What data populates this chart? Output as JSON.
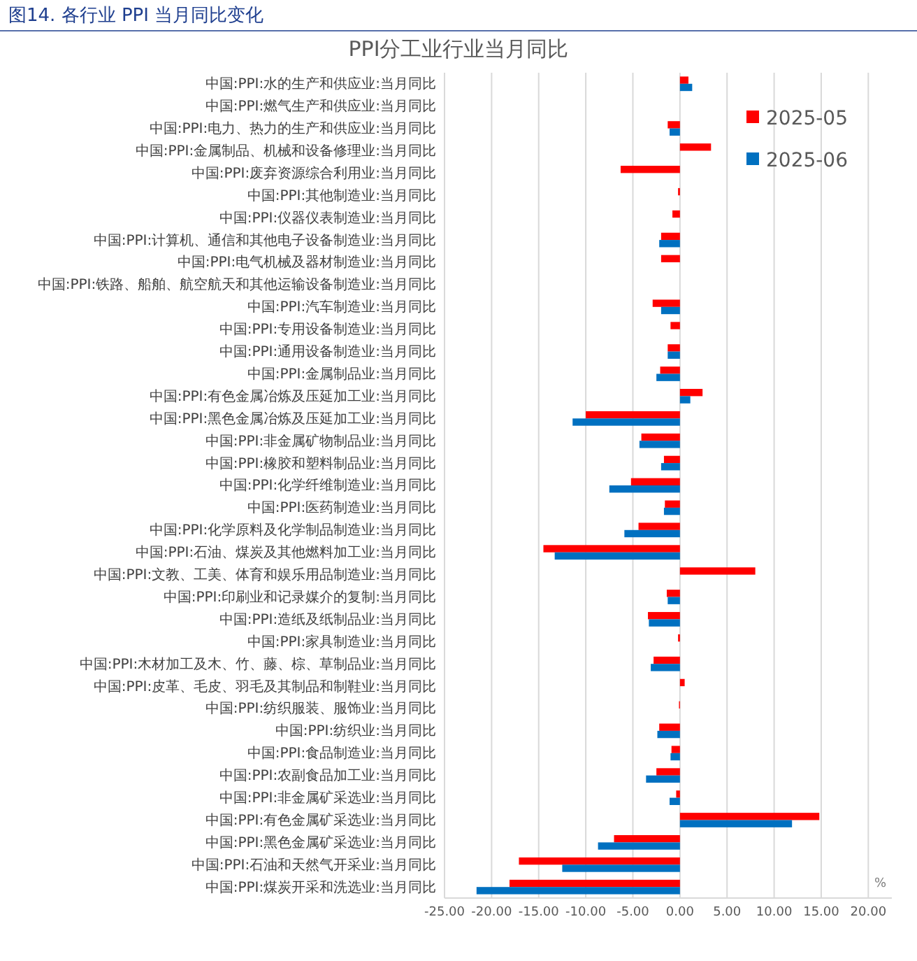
{
  "chart_data": {
    "type": "bar",
    "orientation": "horizontal",
    "title": "PPI分工业行业当月同比",
    "annotations": [
      "图14. 各行业 PPI 当月同比变化"
    ],
    "xlabel": "%",
    "categories": [
      "中国:PPI:水的生产和供应业:当月同比",
      "中国:PPI:燃气生产和供应业:当月同比",
      "中国:PPI:电力、热力的生产和供应业:当月同比",
      "中国:PPI:金属制品、机械和设备修理业:当月同比",
      "中国:PPI:废弃资源综合利用业:当月同比",
      "中国:PPI:其他制造业:当月同比",
      "中国:PPI:仪器仪表制造业:当月同比",
      "中国:PPI:计算机、通信和其他电子设备制造业:当月同比",
      "中国:PPI:电气机械及器材制造业:当月同比",
      "中国:PPI:铁路、船舶、航空航天和其他运输设备制造业:当月同比",
      "中国:PPI:汽车制造业:当月同比",
      "中国:PPI:专用设备制造业:当月同比",
      "中国:PPI:通用设备制造业:当月同比",
      "中国:PPI:金属制品业:当月同比",
      "中国:PPI:有色金属冶炼及压延加工业:当月同比",
      "中国:PPI:黑色金属冶炼及压延加工业:当月同比",
      "中国:PPI:非金属矿物制品业:当月同比",
      "中国:PPI:橡胶和塑料制品业:当月同比",
      "中国:PPI:化学纤维制造业:当月同比",
      "中国:PPI:医药制造业:当月同比",
      "中国:PPI:化学原料及化学制品制造业:当月同比",
      "中国:PPI:石油、煤炭及其他燃料加工业:当月同比",
      "中国:PPI:文教、工美、体育和娱乐用品制造业:当月同比",
      "中国:PPI:印刷业和记录媒介的复制:当月同比",
      "中国:PPI:造纸及纸制品业:当月同比",
      "中国:PPI:家具制造业:当月同比",
      "中国:PPI:木材加工及木、竹、藤、棕、草制品业:当月同比",
      "中国:PPI:皮革、毛皮、羽毛及其制品和制鞋业:当月同比",
      "中国:PPI:纺织服装、服饰业:当月同比",
      "中国:PPI:纺织业:当月同比",
      "中国:PPI:食品制造业:当月同比",
      "中国:PPI:农副食品加工业:当月同比",
      "中国:PPI:非金属矿采选业:当月同比",
      "中国:PPI:有色金属矿采选业:当月同比",
      "中国:PPI:黑色金属矿采选业:当月同比",
      "中国:PPI:石油和天然气开采业:当月同比",
      "中国:PPI:煤炭开采和洗选业:当月同比"
    ],
    "series": [
      {
        "name": "2025-05",
        "color": "#ff0000",
        "values": [
          0.9,
          null,
          -1.3,
          3.3,
          -6.3,
          -0.2,
          -0.8,
          -2.0,
          -2.0,
          null,
          -2.9,
          -1.0,
          -1.3,
          -2.1,
          2.4,
          -10.0,
          -4.1,
          -1.7,
          -5.2,
          -1.6,
          -4.4,
          -14.5,
          8.0,
          -1.4,
          -3.4,
          -0.2,
          -2.8,
          0.5,
          -0.1,
          -2.2,
          -0.9,
          -2.5,
          -0.4,
          14.8,
          -7.0,
          -17.1,
          -18.1
        ]
      },
      {
        "name": "2025-06",
        "color": "#0070c0",
        "values": [
          1.3,
          null,
          -1.1,
          null,
          null,
          null,
          null,
          -2.2,
          null,
          null,
          -2.0,
          null,
          -1.3,
          -2.5,
          1.1,
          -11.4,
          -4.3,
          -2.0,
          -7.5,
          -1.7,
          -5.9,
          -13.3,
          null,
          -1.3,
          -3.3,
          null,
          -3.1,
          null,
          null,
          -2.4,
          -1.0,
          -3.6,
          -1.1,
          11.9,
          -8.7,
          -12.5,
          -21.6
        ]
      }
    ],
    "xlim": [
      -25,
      22.5
    ],
    "xticks": [
      {
        "value": -25,
        "label": "-25.00"
      },
      {
        "value": -20,
        "label": "-20.00"
      },
      {
        "value": -15,
        "label": "-15.00"
      },
      {
        "value": -10,
        "label": "-10.00"
      },
      {
        "value": -5,
        "label": "-5.00"
      },
      {
        "value": 0,
        "label": "0.00"
      },
      {
        "value": 5,
        "label": "5.00"
      },
      {
        "value": 10,
        "label": "10.00"
      },
      {
        "value": 15,
        "label": "15.00"
      },
      {
        "value": 20,
        "label": "20.00"
      }
    ],
    "grid": "x",
    "legend": "top right"
  }
}
